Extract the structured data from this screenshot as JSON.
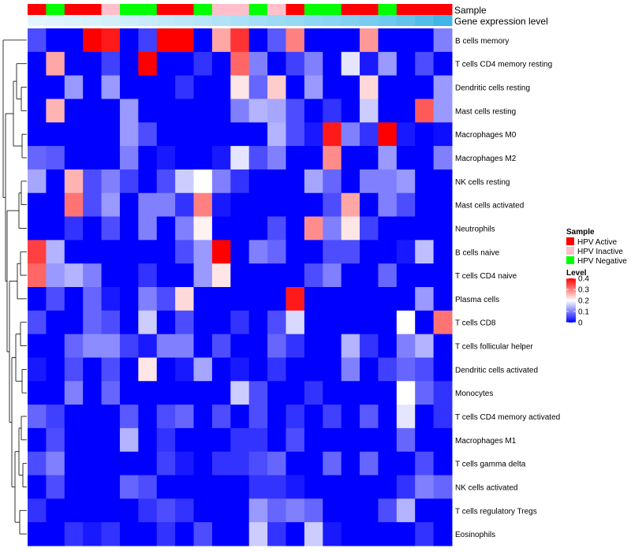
{
  "chart_data": {
    "type": "heatmap",
    "title": "",
    "annotation_tracks": [
      "Sample",
      "Gene expression level"
    ],
    "sample_groups": [
      "HPV Active",
      "HPV Negative",
      "HPV Active",
      "HPV Active",
      "HPV Inactive",
      "HPV Negative",
      "HPV Negative",
      "HPV Active",
      "HPV Active",
      "HPV Negative",
      "HPV Inactive",
      "HPV Inactive",
      "HPV Negative",
      "HPV Inactive",
      "HPV Active",
      "HPV Negative",
      "HPV Negative",
      "HPV Active",
      "HPV Active",
      "HPV Negative",
      "HPV Active",
      "HPV Active",
      "HPV Active"
    ],
    "expression_track": [
      0.02,
      0.04,
      0.06,
      0.09,
      0.12,
      0.15,
      0.18,
      0.22,
      0.25,
      0.28,
      0.32,
      0.36,
      0.4,
      0.44,
      0.48,
      0.52,
      0.56,
      0.6,
      0.66,
      0.72,
      0.8,
      0.9,
      1.0
    ],
    "rows": [
      "B cells memory",
      "T cells CD4 memory resting",
      "Dendritic cells resting",
      "Mast cells resting",
      "Macrophages M0",
      "Macrophages M2",
      "NK cells resting",
      "Mast cells activated",
      "Neutrophils",
      "B cells naive",
      "T cells CD4 naive",
      "Plasma cells",
      "T cells CD8",
      "T cells follicular helper",
      "Dendritic cells activated",
      "Monocytes",
      "T cells CD4 memory activated",
      "Macrophages M1",
      "T cells gamma delta",
      "NK cells activated",
      "T cells regulatory  Tregs",
      "Eosinophils"
    ],
    "values": [
      [
        0.06,
        0.0,
        0.0,
        0.4,
        0.38,
        0.0,
        0.05,
        0.4,
        0.4,
        0.0,
        0.27,
        0.36,
        0.0,
        0.07,
        0.3,
        0.0,
        0.0,
        0.0,
        0.28,
        0.0,
        0.0,
        0.0,
        0.1
      ],
      [
        0.0,
        0.27,
        0.0,
        0.0,
        0.05,
        0.0,
        0.4,
        0.0,
        0.0,
        0.04,
        0.0,
        0.32,
        0.1,
        0.0,
        0.05,
        0.1,
        0.0,
        0.18,
        0.02,
        0.12,
        0.0,
        0.06,
        0.0
      ],
      [
        0.0,
        0.0,
        0.12,
        0.0,
        0.12,
        0.0,
        0.0,
        0.0,
        0.04,
        0.0,
        0.0,
        0.22,
        0.08,
        0.24,
        0.0,
        0.12,
        0.0,
        0.0,
        0.23,
        0.0,
        0.0,
        0.0,
        0.12
      ],
      [
        0.0,
        0.26,
        0.0,
        0.0,
        0.0,
        0.12,
        0.0,
        0.0,
        0.0,
        0.0,
        0.0,
        0.1,
        0.14,
        0.13,
        0.06,
        0.0,
        0.04,
        0.0,
        0.16,
        0.0,
        0.0,
        0.33,
        0.12
      ],
      [
        0.0,
        0.0,
        0.0,
        0.0,
        0.0,
        0.12,
        0.06,
        0.0,
        0.0,
        0.0,
        0.0,
        0.0,
        0.0,
        0.14,
        0.06,
        0.02,
        0.38,
        0.1,
        0.04,
        0.4,
        0.02,
        0.0,
        0.01
      ],
      [
        0.08,
        0.07,
        0.0,
        0.0,
        0.0,
        0.1,
        0.0,
        0.02,
        0.0,
        0.0,
        0.02,
        0.18,
        0.06,
        0.1,
        0.0,
        0.0,
        0.29,
        0.0,
        0.0,
        0.12,
        0.0,
        0.0,
        0.1
      ],
      [
        0.13,
        0.0,
        0.26,
        0.06,
        0.1,
        0.05,
        0.0,
        0.06,
        0.16,
        0.2,
        0.1,
        0.04,
        0.0,
        0.0,
        0.0,
        0.13,
        0.08,
        0.0,
        0.1,
        0.1,
        0.12,
        0.0,
        0.0
      ],
      [
        0.0,
        0.0,
        0.31,
        0.06,
        0.12,
        0.0,
        0.1,
        0.1,
        0.04,
        0.3,
        0.02,
        0.0,
        0.0,
        0.0,
        0.0,
        0.0,
        0.06,
        0.27,
        0.0,
        0.1,
        0.06,
        0.0,
        0.0
      ],
      [
        0.0,
        0.0,
        0.04,
        0.0,
        0.06,
        0.0,
        0.1,
        0.0,
        0.1,
        0.21,
        0.0,
        0.0,
        0.0,
        0.06,
        0.0,
        0.29,
        0.1,
        0.22,
        0.05,
        0.0,
        0.0,
        0.0,
        0.0
      ],
      [
        0.35,
        0.14,
        0.0,
        0.0,
        0.0,
        0.0,
        0.0,
        0.0,
        0.06,
        0.12,
        0.4,
        0.0,
        0.1,
        0.08,
        0.0,
        0.0,
        0.06,
        0.06,
        0.0,
        0.0,
        0.02,
        0.15,
        0.0
      ],
      [
        0.32,
        0.12,
        0.14,
        0.1,
        0.0,
        0.0,
        0.04,
        0.0,
        0.0,
        0.12,
        0.22,
        0.0,
        0.0,
        0.0,
        0.0,
        0.06,
        0.1,
        0.0,
        0.0,
        0.08,
        0.0,
        0.0,
        0.0
      ],
      [
        0.0,
        0.06,
        0.0,
        0.08,
        0.02,
        0.0,
        0.1,
        0.06,
        0.23,
        0.0,
        0.0,
        0.0,
        0.0,
        0.0,
        0.38,
        0.0,
        0.0,
        0.0,
        0.0,
        0.0,
        0.0,
        0.12,
        0.0
      ],
      [
        0.06,
        0.0,
        0.0,
        0.08,
        0.06,
        0.0,
        0.16,
        0.0,
        0.06,
        0.0,
        0.0,
        0.04,
        0.0,
        0.06,
        0.17,
        0.0,
        0.0,
        0.0,
        0.0,
        0.0,
        0.2,
        0.0,
        0.31
      ],
      [
        0.0,
        0.0,
        0.08,
        0.11,
        0.11,
        0.05,
        0.02,
        0.1,
        0.1,
        0.0,
        0.06,
        0.0,
        0.0,
        0.08,
        0.04,
        0.0,
        0.0,
        0.14,
        0.04,
        0.0,
        0.1,
        0.14,
        0.0
      ],
      [
        0.02,
        0.0,
        0.06,
        0.0,
        0.06,
        0.0,
        0.22,
        0.0,
        0.02,
        0.13,
        0.0,
        0.02,
        0.0,
        0.04,
        0.0,
        0.0,
        0.0,
        0.1,
        0.0,
        0.05,
        0.08,
        0.06,
        0.0
      ],
      [
        0.0,
        0.0,
        0.1,
        0.0,
        0.08,
        0.0,
        0.0,
        0.0,
        0.0,
        0.0,
        0.0,
        0.16,
        0.06,
        0.0,
        0.0,
        0.04,
        0.0,
        0.0,
        0.0,
        0.0,
        0.2,
        0.08,
        0.04
      ],
      [
        0.08,
        0.05,
        0.0,
        0.0,
        0.0,
        0.07,
        0.0,
        0.06,
        0.08,
        0.0,
        0.06,
        0.0,
        0.06,
        0.0,
        0.04,
        0.0,
        0.05,
        0.0,
        0.07,
        0.0,
        0.18,
        0.0,
        0.04
      ],
      [
        0.0,
        0.06,
        0.0,
        0.0,
        0.0,
        0.14,
        0.0,
        0.04,
        0.0,
        0.0,
        0.0,
        0.04,
        0.04,
        0.0,
        0.06,
        0.0,
        0.0,
        0.0,
        0.0,
        0.0,
        0.08,
        0.0,
        0.0
      ],
      [
        0.06,
        0.1,
        0.0,
        0.0,
        0.0,
        0.0,
        0.0,
        0.05,
        0.02,
        0.0,
        0.04,
        0.04,
        0.06,
        0.08,
        0.0,
        0.0,
        0.08,
        0.0,
        0.08,
        0.0,
        0.0,
        0.06,
        0.0
      ],
      [
        0.0,
        0.06,
        0.0,
        0.0,
        0.0,
        0.08,
        0.06,
        0.0,
        0.0,
        0.0,
        0.0,
        0.0,
        0.04,
        0.04,
        0.02,
        0.0,
        0.0,
        0.0,
        0.0,
        0.0,
        0.04,
        0.1,
        0.08
      ],
      [
        0.04,
        0.0,
        0.0,
        0.0,
        0.0,
        0.0,
        0.04,
        0.06,
        0.04,
        0.0,
        0.0,
        0.0,
        0.12,
        0.08,
        0.1,
        0.08,
        0.0,
        0.0,
        0.0,
        0.06,
        0.14,
        0.0,
        0.0
      ],
      [
        0.0,
        0.0,
        0.04,
        0.02,
        0.04,
        0.0,
        0.0,
        0.04,
        0.0,
        0.06,
        0.0,
        0.0,
        0.16,
        0.04,
        0.0,
        0.16,
        0.02,
        0.0,
        0.0,
        0.0,
        0.0,
        0.04,
        0.0
      ]
    ],
    "legend": {
      "sample_title": "Sample",
      "sample_entries": [
        {
          "label": "HPV Active",
          "color": "#ff0000"
        },
        {
          "label": "HPV Inactive",
          "color": "#ffc0cb"
        },
        {
          "label": "HPV Negative",
          "color": "#00ff00"
        }
      ],
      "level_title": "Level",
      "level_ticks": [
        "0.4",
        "0.3",
        "0.2",
        "0.1",
        "0"
      ],
      "level_range": [
        0,
        0.4
      ]
    },
    "colors": {
      "low": "#0000ff",
      "mid": "#ffffff",
      "high": "#ff0000",
      "track_low": "#e6f7ff",
      "track_high": "#41b6e6"
    },
    "dendrogram_rows": true
  }
}
